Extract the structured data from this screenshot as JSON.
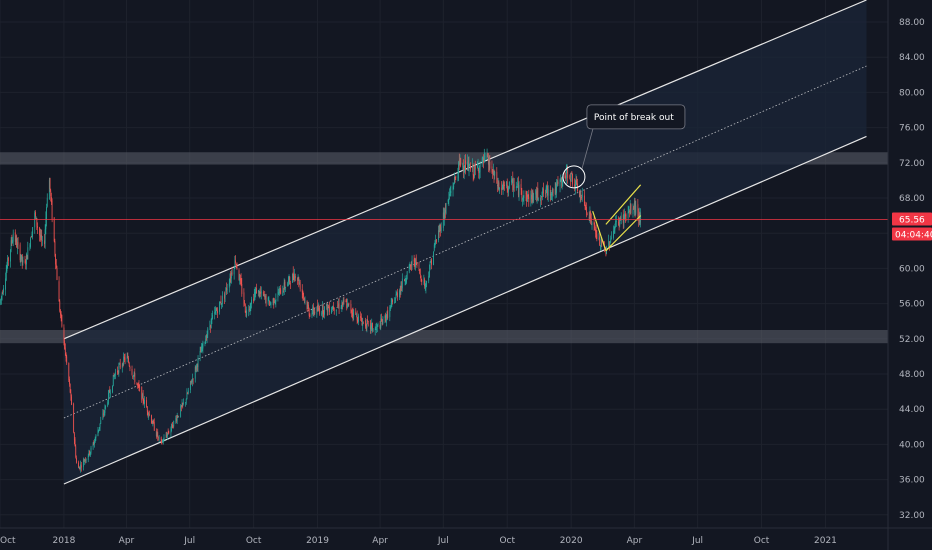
{
  "colors": {
    "background": "#131722",
    "grid": "#1e222d",
    "axis_text": "#b2b5be",
    "up": "#26a69a",
    "down": "#ef5350",
    "channel_line": "#e6e6e6",
    "channel_fill": "#1b2638",
    "zone_fill": "#5d606b",
    "price_line": "#f23645",
    "wedge": "#e8e04a",
    "annotation_bg": "#131722",
    "annotation_border": "#787b86"
  },
  "chart_data": {
    "type": "candlestick",
    "x_axis": {
      "ticks": [
        {
          "label": "Oct",
          "date": "2017-10-01"
        },
        {
          "label": "2018",
          "date": "2018-01-01"
        },
        {
          "label": "Apr",
          "date": "2018-04-01"
        },
        {
          "label": "Jul",
          "date": "2018-07-01"
        },
        {
          "label": "Oct",
          "date": "2018-10-01"
        },
        {
          "label": "2019",
          "date": "2019-01-01"
        },
        {
          "label": "Apr",
          "date": "2019-04-01"
        },
        {
          "label": "Jul",
          "date": "2019-07-01"
        },
        {
          "label": "Oct",
          "date": "2019-10-01"
        },
        {
          "label": "2020",
          "date": "2020-01-01"
        },
        {
          "label": "Apr",
          "date": "2020-04-01"
        },
        {
          "label": "Jul",
          "date": "2020-07-01"
        },
        {
          "label": "Oct",
          "date": "2020-10-01"
        },
        {
          "label": "2021",
          "date": "2021-01-01"
        }
      ],
      "range": [
        "2017-10-01",
        "2021-04-01"
      ]
    },
    "y_axis": {
      "ticks": [
        "32.00",
        "36.00",
        "40.00",
        "44.00",
        "48.00",
        "52.00",
        "56.00",
        "60.00",
        "64.00",
        "68.00",
        "72.00",
        "76.00",
        "80.00",
        "84.00",
        "88.00"
      ],
      "range": [
        30.5,
        90.5
      ],
      "position": "right"
    },
    "price_series": [
      [
        "2017-10-01",
        56.0
      ],
      [
        "2017-10-20",
        64.0
      ],
      [
        "2017-11-05",
        60.0
      ],
      [
        "2017-11-20",
        66.0
      ],
      [
        "2017-12-03",
        62.0
      ],
      [
        "2017-12-10",
        71.0
      ],
      [
        "2017-12-25",
        56.0
      ],
      [
        "2018-01-10",
        46.0
      ],
      [
        "2018-01-20",
        37.0
      ],
      [
        "2018-02-10",
        39.5
      ],
      [
        "2018-03-01",
        44.0
      ],
      [
        "2018-03-15",
        48.0
      ],
      [
        "2018-04-01",
        50.0
      ],
      [
        "2018-04-15",
        47.0
      ],
      [
        "2018-05-01",
        44.0
      ],
      [
        "2018-05-20",
        40.0
      ],
      [
        "2018-06-05",
        42.0
      ],
      [
        "2018-06-25",
        45.0
      ],
      [
        "2018-07-15",
        50.0
      ],
      [
        "2018-08-01",
        54.0
      ],
      [
        "2018-08-20",
        57.0
      ],
      [
        "2018-09-05",
        61.0
      ],
      [
        "2018-09-20",
        55.0
      ],
      [
        "2018-10-05",
        57.5
      ],
      [
        "2018-10-25",
        56.0
      ],
      [
        "2018-11-15",
        58.0
      ],
      [
        "2018-12-01",
        59.5
      ],
      [
        "2018-12-20",
        55.0
      ],
      [
        "2019-01-15",
        55.5
      ],
      [
        "2019-02-10",
        56.0
      ],
      [
        "2019-03-05",
        54.0
      ],
      [
        "2019-03-25",
        53.0
      ],
      [
        "2019-04-10",
        54.5
      ],
      [
        "2019-05-01",
        58.0
      ],
      [
        "2019-05-20",
        61.0
      ],
      [
        "2019-06-05",
        58.0
      ],
      [
        "2019-06-20",
        63.0
      ],
      [
        "2019-07-05",
        67.0
      ],
      [
        "2019-07-25",
        72.0
      ],
      [
        "2019-08-15",
        71.0
      ],
      [
        "2019-09-01",
        72.5
      ],
      [
        "2019-09-20",
        69.0
      ],
      [
        "2019-10-10",
        69.5
      ],
      [
        "2019-10-30",
        68.0
      ],
      [
        "2019-11-20",
        68.5
      ],
      [
        "2019-12-10",
        69.0
      ],
      [
        "2019-12-28",
        71.0
      ],
      [
        "2020-01-10",
        69.0
      ],
      [
        "2020-01-25",
        66.5
      ],
      [
        "2020-02-10",
        63.0
      ],
      [
        "2020-02-20",
        62.0
      ],
      [
        "2020-03-05",
        65.0
      ],
      [
        "2020-03-20",
        66.0
      ],
      [
        "2020-04-01",
        67.0
      ],
      [
        "2020-04-10",
        65.56
      ]
    ],
    "last_price": "65.56",
    "countdown": "04:04:40",
    "price_line": 65.56,
    "channel": {
      "upper": [
        [
          "2018-01-01",
          52.0
        ],
        [
          "2021-03-01",
          90.5
        ]
      ],
      "middle": [
        [
          "2018-01-01",
          43.0
        ],
        [
          "2021-03-01",
          83.0
        ]
      ],
      "lower": [
        [
          "2018-01-01",
          35.5
        ],
        [
          "2021-03-01",
          75.0
        ]
      ]
    },
    "horizontal_zones": [
      {
        "from": 71.8,
        "to": 73.2
      },
      {
        "from": 51.5,
        "to": 53.0
      }
    ],
    "wedge": {
      "upper": [
        [
          "2020-02-20",
          65.0
        ],
        [
          "2020-04-10",
          69.5
        ]
      ],
      "lower": [
        [
          "2020-02-20",
          62.0
        ],
        [
          "2020-04-10",
          66.0
        ]
      ]
    },
    "annotations": [
      {
        "text": "Point of break out",
        "date": "2020-01-05",
        "price": 70.4,
        "callout": "circle"
      }
    ]
  }
}
